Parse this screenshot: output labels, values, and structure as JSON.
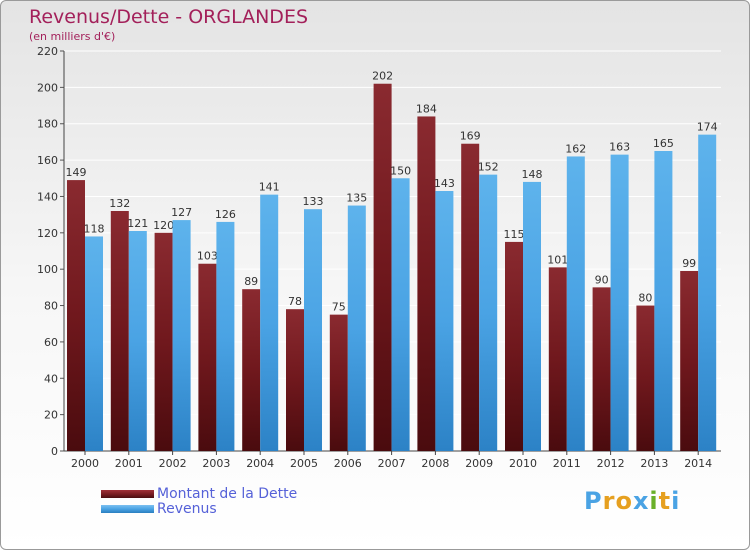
{
  "header": {
    "title": "Revenus/Dette - ORGLANDES",
    "subtitle": "(en milliers d'€)"
  },
  "logo": {
    "text": "Proxiti",
    "letters": [
      "P",
      "r",
      "o",
      "x",
      "i",
      "t",
      "i"
    ]
  },
  "colors": {
    "dette": "#7a1d22",
    "revenus": "#4aa3e4",
    "title": "#a3205a",
    "legend_text": "#5561d8"
  },
  "chart_data": {
    "type": "bar",
    "title": "Revenus/Dette - ORGLANDES",
    "subtitle": "(en milliers d'€)",
    "xlabel": "",
    "ylabel": "",
    "ylim": [
      0,
      220
    ],
    "yticks": [
      0,
      20,
      40,
      60,
      80,
      100,
      120,
      140,
      160,
      180,
      200,
      220
    ],
    "grid": true,
    "legend_position": "bottom-left",
    "categories": [
      "2000",
      "2001",
      "2002",
      "2003",
      "2004",
      "2005",
      "2006",
      "2007",
      "2008",
      "2009",
      "2010",
      "2011",
      "2012",
      "2013",
      "2014"
    ],
    "series": [
      {
        "name": "Montant de la Dette",
        "color": "#7a1d22",
        "values": [
          149,
          132,
          120,
          103,
          89,
          78,
          75,
          202,
          184,
          169,
          115,
          101,
          90,
          80,
          99
        ]
      },
      {
        "name": "Revenus",
        "color": "#4aa3e4",
        "values": [
          118,
          121,
          127,
          126,
          141,
          133,
          135,
          150,
          143,
          152,
          148,
          162,
          163,
          165,
          174
        ]
      }
    ]
  }
}
